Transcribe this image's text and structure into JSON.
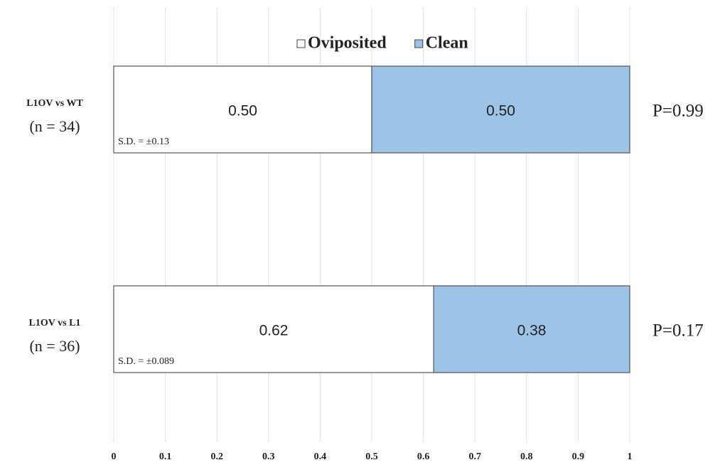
{
  "chart_data": {
    "type": "stacked-barh",
    "categories": [
      "L1OV vs WT",
      "L1OV vs L1"
    ],
    "category_notes": [
      "(n = 34)",
      "(n = 36)"
    ],
    "series": [
      {
        "name": "Oviposited",
        "color": "#ffffff",
        "values": [
          0.5,
          0.62
        ],
        "value_labels": [
          "0.50",
          "0.62"
        ]
      },
      {
        "name": "Clean",
        "color": "#9dc3e6",
        "values": [
          0.5,
          0.38
        ],
        "value_labels": [
          "0.50",
          "0.38"
        ]
      }
    ],
    "sd_labels": [
      "S.D. = ±0.13",
      "S.D. = ±0.089"
    ],
    "p_labels": [
      "P=0.99",
      "P=0.17"
    ],
    "xlim": [
      0,
      1
    ],
    "xticks": [
      0,
      0.1,
      0.2,
      0.3,
      0.4,
      0.5,
      0.6,
      0.7,
      0.8,
      0.9,
      1
    ],
    "grid": true,
    "legend": "top"
  }
}
